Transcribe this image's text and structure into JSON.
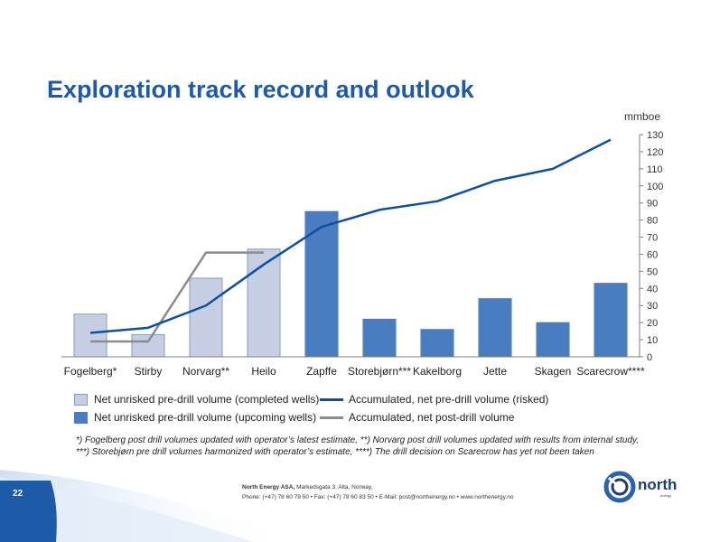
{
  "title": "Exploration track record and outlook",
  "footnote_line1": "*) Fogelberg post drill volumes updated with operator’s latest estimate, **) Norvarg post drill volumes updated with results from internal study,",
  "footnote_line2": "***) Storebjørn pre drill volumes harmonized with operator’s estimate, ****) The drill decision on Scarecrow has yet not been taken",
  "page_number": "22",
  "footer": {
    "company": "North Energy ASA,",
    "address": "Markedsgata 3, Alta, Norway.",
    "contact": "Phone: (+47) 78 60 79 50  •  Fax: (+47) 78 60 83 50  •  E-Mail: post@northenergy.no  •  www.northenergy.no",
    "logo_text": "north",
    "logo_sub": "energy"
  },
  "colors": {
    "completed_bar": "#c5cee3",
    "upcoming_bar": "#4a7cc0",
    "risked_line": "#0e50a0",
    "post_drill_line": "#8c8c8c",
    "title": "#1d5aa8"
  },
  "chart_data": {
    "type": "bar",
    "title": "",
    "unit": "mmboe",
    "categories": [
      "Fogelberg*",
      "Stirby",
      "Norvarg**",
      "Heilo",
      "Zapffe",
      "Storebjørn***",
      "Kakelborg",
      "Jette",
      "Skagen",
      "Scarecrow****"
    ],
    "ylim": [
      0,
      130
    ],
    "yticks": [
      0,
      10,
      20,
      30,
      40,
      50,
      60,
      70,
      80,
      90,
      100,
      110,
      120,
      130
    ],
    "y_axis_side": "right",
    "grid": false,
    "legend_position": "bottom",
    "series": [
      {
        "name": "Net unrisked pre-drill volume (completed wells)",
        "kind": "bar",
        "values": [
          25,
          13,
          46,
          63,
          null,
          null,
          null,
          null,
          null,
          null
        ]
      },
      {
        "name": "Net unrisked pre-drill volume (upcoming wells)",
        "kind": "bar",
        "values": [
          null,
          null,
          null,
          null,
          85,
          22,
          16,
          34,
          20,
          43
        ]
      },
      {
        "name": "Accumulated, net pre-drill volume (risked)",
        "kind": "line",
        "values": [
          14,
          17,
          30,
          54,
          76,
          86,
          91,
          103,
          110,
          127
        ]
      },
      {
        "name": "Accumulated, net post-drill volume",
        "kind": "line",
        "values": [
          9,
          9,
          61,
          61,
          null,
          null,
          null,
          null,
          null,
          null
        ]
      }
    ]
  }
}
